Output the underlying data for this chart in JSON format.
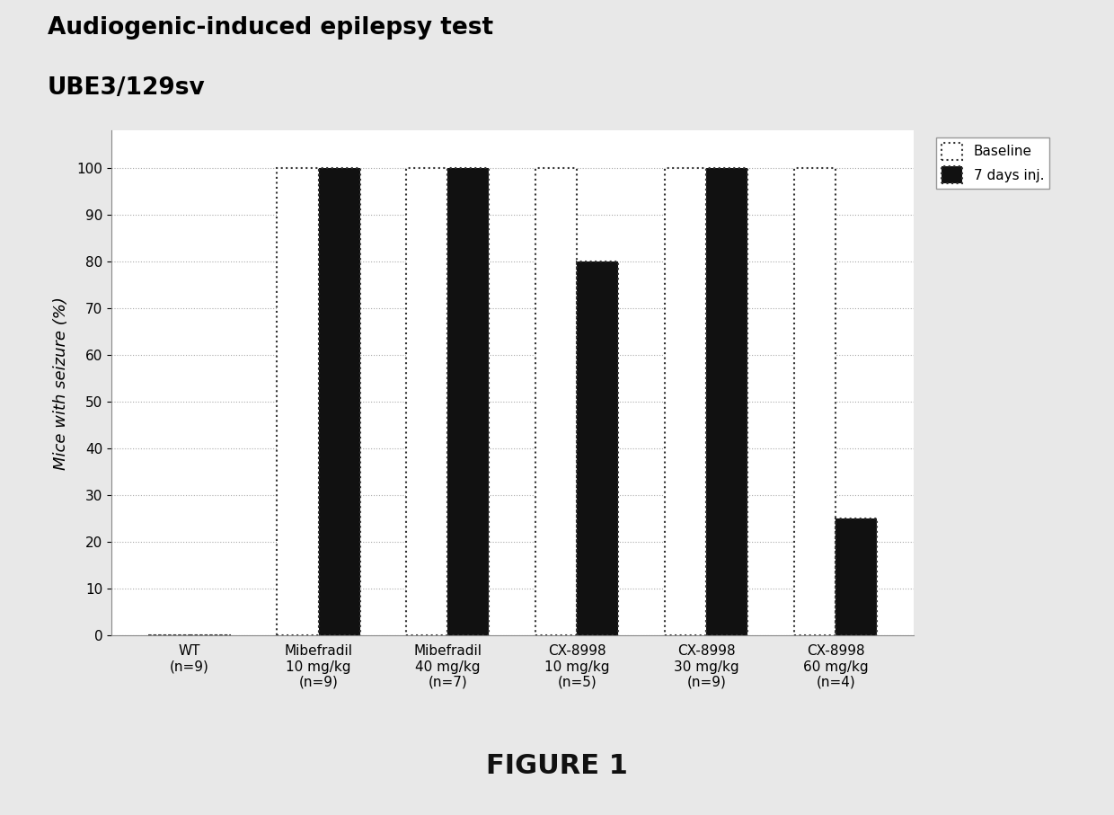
{
  "title_line1": "Audiogenic-induced epilepsy test",
  "title_line2": "UBE3/129sv",
  "ylabel": "Mice with seizure (%)",
  "figure_label": "FIGURE 1",
  "categories": [
    "WT\n(n=9)",
    "Mibefradil\n10 mg/kg\n(n=9)",
    "Mibefradil\n40 mg/kg\n(n=7)",
    "CX-8998\n10 mg/kg\n(n=5)",
    "CX-8998\n30 mg/kg\n(n=9)",
    "CX-8998\n60 mg/kg\n(n=4)"
  ],
  "baseline_values": [
    0,
    100,
    100,
    100,
    100,
    100
  ],
  "days7_values": [
    0,
    100,
    100,
    80,
    100,
    25
  ],
  "bar_width": 0.32,
  "ylim": [
    0,
    108
  ],
  "yticks": [
    0,
    10,
    20,
    30,
    40,
    50,
    60,
    70,
    80,
    90,
    100
  ],
  "baseline_color": "#ffffff",
  "days7_color": "#111111",
  "bar_edge_color": "#333333",
  "background_color": "#ffffff",
  "outer_bg_color": "#e8e8e8",
  "grid_color": "#aaaaaa",
  "title_fontsize": 19,
  "label_fontsize": 13,
  "tick_fontsize": 11,
  "figure_label_fontsize": 22
}
